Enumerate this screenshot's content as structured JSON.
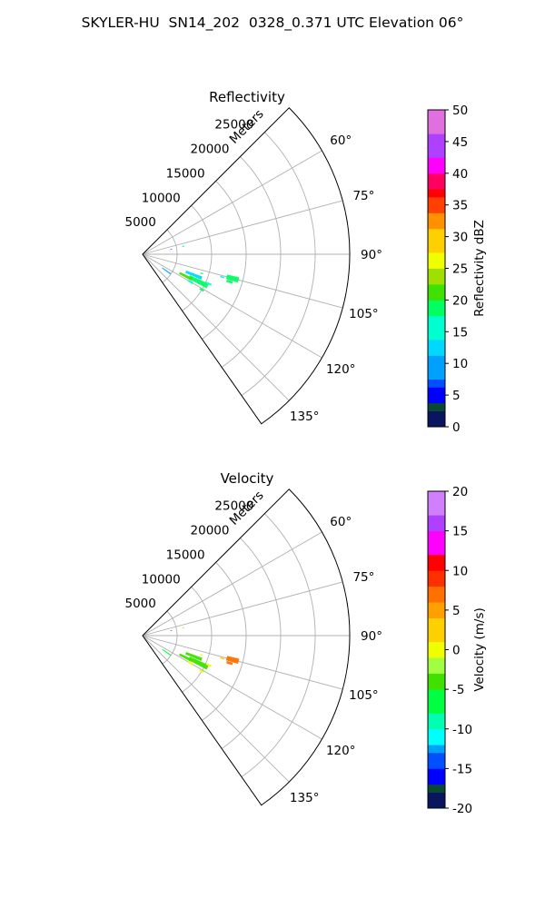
{
  "figure": {
    "title": "SKYLER-HU  SN14_202  0328_0.371 UTC Elevation 06°"
  },
  "chart_data": [
    {
      "type": "polar-sector",
      "title": "Reflectivity",
      "radial_label": "Meters",
      "r_ticks": [
        "5000",
        "10000",
        "15000",
        "20000",
        "25000"
      ],
      "r_tick_values": [
        5000,
        10000,
        15000,
        20000,
        25000
      ],
      "rlim": [
        0,
        30000
      ],
      "theta_ticks": [
        "60°",
        "75°",
        "90°",
        "105°",
        "120°",
        "135°"
      ],
      "theta_tick_values": [
        60,
        75,
        90,
        105,
        120,
        135
      ],
      "theta_range": [
        45,
        145
      ],
      "grid": true,
      "colorbar": {
        "label": "Reflectivity dBZ",
        "min": 0,
        "max": 50,
        "ticks": [
          "0",
          "5",
          "10",
          "15",
          "20",
          "25",
          "30",
          "35",
          "40",
          "45",
          "50"
        ],
        "tick_values": [
          0,
          5,
          10,
          15,
          20,
          25,
          30,
          35,
          40,
          45,
          50
        ],
        "stops": [
          [
            0,
            "#0a1560"
          ],
          [
            2.5,
            "#0a4a30"
          ],
          [
            4,
            "#0000ff"
          ],
          [
            6,
            "#0050ff"
          ],
          [
            8,
            "#00a0ff"
          ],
          [
            11,
            "#00d8ff"
          ],
          [
            14,
            "#00ffd0"
          ],
          [
            17,
            "#00ff60"
          ],
          [
            20,
            "#40e000"
          ],
          [
            22,
            "#a0e000"
          ],
          [
            25,
            "#f0ff00"
          ],
          [
            28,
            "#ffd000"
          ],
          [
            31,
            "#ff9000"
          ],
          [
            34,
            "#ff4000"
          ],
          [
            36,
            "#ff0000"
          ],
          [
            38,
            "#ff0060"
          ],
          [
            40,
            "#ff00ff"
          ],
          [
            43,
            "#b040ff"
          ],
          [
            46,
            "#e070e0"
          ],
          [
            50,
            "#fff0ff"
          ]
        ]
      },
      "echoes": [
        {
          "theta": 105,
          "r": 13500,
          "dr": 1800,
          "dth": 3,
          "value": 17
        },
        {
          "theta": 106,
          "r": 12000,
          "dr": 600,
          "dth": 1,
          "value": 14
        },
        {
          "theta": 107.5,
          "r": 13200,
          "dr": 900,
          "dth": 1.5,
          "value": 18
        },
        {
          "theta": 112,
          "r": 8000,
          "dr": 2500,
          "dth": 3,
          "value": 13
        },
        {
          "theta": 116,
          "r": 9000,
          "dr": 3000,
          "dth": 4,
          "value": 18
        },
        {
          "theta": 117,
          "r": 7000,
          "dr": 2000,
          "dth": 3,
          "value": 20
        },
        {
          "theta": 114,
          "r": 10500,
          "dr": 800,
          "dth": 1.5,
          "value": 14
        },
        {
          "theta": 120,
          "r": 8000,
          "dr": 800,
          "dth": 2,
          "value": 15
        },
        {
          "theta": 121,
          "r": 10000,
          "dr": 700,
          "dth": 1.5,
          "value": 17
        },
        {
          "theta": 125,
          "r": 4200,
          "dr": 1500,
          "dth": 2,
          "value": 9
        },
        {
          "theta": 108,
          "r": 9000,
          "dr": 400,
          "dth": 1,
          "value": 19
        },
        {
          "theta": 80,
          "r": 4200,
          "dr": 250,
          "dth": 1,
          "value": 5
        },
        {
          "theta": 84,
          "r": 4000,
          "dr": 150,
          "dth": 0.6,
          "value": 3
        },
        {
          "theta": 79,
          "r": 6000,
          "dr": 300,
          "dth": 1.5,
          "value": 16
        }
      ]
    },
    {
      "type": "polar-sector",
      "title": "Velocity",
      "radial_label": "Meters",
      "r_ticks": [
        "5000",
        "10000",
        "15000",
        "20000",
        "25000"
      ],
      "r_tick_values": [
        5000,
        10000,
        15000,
        20000,
        25000
      ],
      "rlim": [
        0,
        30000
      ],
      "theta_ticks": [
        "60°",
        "75°",
        "90°",
        "105°",
        "120°",
        "135°"
      ],
      "theta_tick_values": [
        60,
        75,
        90,
        105,
        120,
        135
      ],
      "theta_range": [
        45,
        145
      ],
      "grid": true,
      "colorbar": {
        "label": "Velocity (m/s)",
        "min": -20,
        "max": 20,
        "ticks": [
          "-20",
          "-15",
          "-10",
          "-5",
          "0",
          "5",
          "10",
          "15",
          "20"
        ],
        "tick_values": [
          -20,
          -15,
          -10,
          -5,
          0,
          5,
          10,
          15,
          20
        ],
        "stops": [
          [
            -20,
            "#0a1560"
          ],
          [
            -18,
            "#0a4a30"
          ],
          [
            -16.5,
            "#0000ff"
          ],
          [
            -15,
            "#0050ff"
          ],
          [
            -13,
            "#00a0ff"
          ],
          [
            -11.5,
            "#00ffff"
          ],
          [
            -9.5,
            "#00ffb0"
          ],
          [
            -8,
            "#00ff40"
          ],
          [
            -5,
            "#40e000"
          ],
          [
            -2.5,
            "#a0ff40"
          ],
          [
            -1,
            "#f0ff00"
          ],
          [
            1.5,
            "#ffd000"
          ],
          [
            4,
            "#ffa000"
          ],
          [
            6,
            "#ff7000"
          ],
          [
            8.5,
            "#ff3000"
          ],
          [
            10,
            "#ff0000"
          ],
          [
            12,
            "#ff00ff"
          ],
          [
            15,
            "#b040ff"
          ],
          [
            17.5,
            "#d080ff"
          ],
          [
            20,
            "#fff0ff"
          ]
        ]
      },
      "echoes": [
        {
          "theta": 105,
          "r": 13500,
          "dr": 1800,
          "dth": 3,
          "value": 8
        },
        {
          "theta": 106,
          "r": 12000,
          "dr": 600,
          "dth": 1,
          "value": 2
        },
        {
          "theta": 107.5,
          "r": 13200,
          "dr": 900,
          "dth": 1.5,
          "value": 6
        },
        {
          "theta": 112,
          "r": 8000,
          "dr": 2500,
          "dth": 3,
          "value": -3
        },
        {
          "theta": 116,
          "r": 9000,
          "dr": 3000,
          "dth": 4,
          "value": -4
        },
        {
          "theta": 117,
          "r": 7000,
          "dr": 2000,
          "dth": 3,
          "value": -5
        },
        {
          "theta": 114,
          "r": 10500,
          "dr": 800,
          "dth": 1.5,
          "value": 1
        },
        {
          "theta": 120,
          "r": 8000,
          "dr": 800,
          "dth": 2,
          "value": -1
        },
        {
          "theta": 121,
          "r": 10000,
          "dr": 700,
          "dth": 1.5,
          "value": -1
        },
        {
          "theta": 125,
          "r": 4200,
          "dr": 1500,
          "dth": 2,
          "value": -6
        },
        {
          "theta": 108,
          "r": 9000,
          "dr": 400,
          "dth": 1,
          "value": 1
        },
        {
          "theta": 80,
          "r": 4200,
          "dr": 250,
          "dth": 1,
          "value": -17
        },
        {
          "theta": 84,
          "r": 4000,
          "dr": 150,
          "dth": 0.6,
          "value": -9
        },
        {
          "theta": 79,
          "r": 6000,
          "dr": 300,
          "dth": 1.5,
          "value": -2
        }
      ]
    }
  ]
}
